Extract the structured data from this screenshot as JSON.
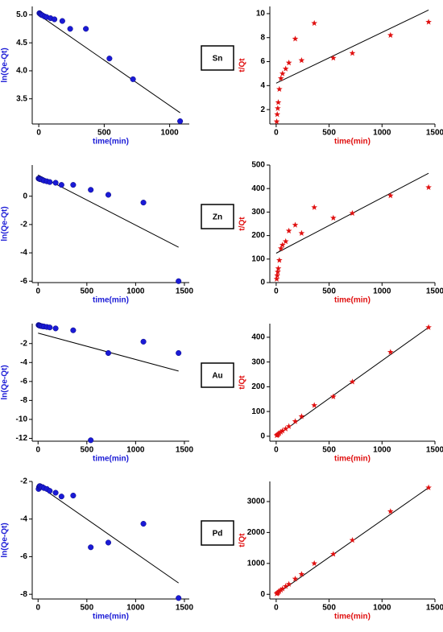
{
  "labels": [
    "Sn",
    "Zn",
    "Au",
    "Pd"
  ],
  "chart_data": [
    {
      "type": "scatter",
      "marker": "circle",
      "color": "#1a1ad6",
      "xlabel": "time(min)",
      "ylabel": "ln(Qe-Qt)",
      "x": [
        5,
        10,
        15,
        20,
        30,
        45,
        60,
        90,
        120,
        180,
        240,
        360,
        540,
        720,
        1080
      ],
      "values": [
        5.03,
        5.02,
        5.01,
        5.0,
        4.99,
        4.97,
        4.96,
        4.94,
        4.92,
        4.89,
        4.75,
        4.75,
        4.22,
        3.85,
        3.1
      ],
      "fit_x": [
        0,
        1080
      ],
      "fit_values": [
        5.0,
        3.25
      ],
      "xlim": [
        -50,
        1150
      ],
      "xticks": [
        0,
        500,
        1000
      ],
      "ylim": [
        3.05,
        5.15
      ],
      "yticks": [
        3.5,
        {
          "value": 4,
          "label": "4.0"
        },
        4.5,
        {
          "value": 5,
          "label": "5.0"
        }
      ]
    },
    {
      "type": "scatter",
      "marker": "star",
      "color": "#e01010",
      "xlabel": "time(min)",
      "ylabel": "t/Qt",
      "x": [
        5,
        10,
        15,
        20,
        30,
        45,
        60,
        90,
        120,
        180,
        240,
        360,
        540,
        720,
        1080,
        1440
      ],
      "values": [
        1.0,
        1.6,
        2.1,
        2.6,
        3.7,
        4.6,
        5.0,
        5.4,
        5.9,
        7.9,
        6.1,
        9.2,
        6.3,
        6.7,
        8.2,
        9.3
      ],
      "fit_x": [
        0,
        1440
      ],
      "fit_values": [
        4.2,
        10.3
      ],
      "xlim": [
        -60,
        1500
      ],
      "xticks": [
        0,
        500,
        1000,
        1500
      ],
      "ylim": [
        0.8,
        10.6
      ],
      "yticks": [
        2,
        4,
        6,
        8,
        10
      ]
    },
    {
      "type": "scatter",
      "marker": "circle",
      "color": "#1a1ad6",
      "xlabel": "time(min)",
      "ylabel": "ln(Qe-Qt)",
      "x": [
        5,
        10,
        15,
        20,
        30,
        45,
        60,
        90,
        120,
        180,
        240,
        360,
        540,
        720,
        1080,
        1440
      ],
      "values": [
        1.25,
        1.25,
        1.22,
        1.2,
        1.2,
        1.15,
        1.1,
        1.05,
        1.0,
        0.95,
        0.8,
        0.8,
        0.45,
        0.1,
        -0.45,
        -6.0
      ],
      "fit_x": [
        0,
        1440
      ],
      "fit_values": [
        1.5,
        -3.6
      ],
      "xlim": [
        -60,
        1550
      ],
      "xticks": [
        0,
        500,
        1000,
        1500
      ],
      "ylim": [
        -6.1,
        2.2
      ],
      "yticks": [
        -6,
        -4,
        -2,
        0
      ]
    },
    {
      "type": "scatter",
      "marker": "star",
      "color": "#e01010",
      "xlabel": "time(min)",
      "ylabel": "t/Qt",
      "x": [
        5,
        10,
        15,
        20,
        30,
        45,
        60,
        90,
        120,
        180,
        240,
        360,
        540,
        720,
        1080,
        1440
      ],
      "values": [
        15,
        30,
        45,
        60,
        95,
        145,
        160,
        175,
        220,
        245,
        210,
        320,
        275,
        295,
        370,
        405
      ],
      "fit_x": [
        0,
        1440
      ],
      "fit_values": [
        125,
        465
      ],
      "xlim": [
        -60,
        1500
      ],
      "xticks": [
        0,
        500,
        1000,
        1500
      ],
      "ylim": [
        0,
        500
      ],
      "yticks": [
        0,
        100,
        200,
        300,
        400,
        500
      ]
    },
    {
      "type": "scatter",
      "marker": "circle",
      "color": "#1a1ad6",
      "xlabel": "time(min)",
      "ylabel": "ln(Qe-Qt)",
      "x": [
        5,
        10,
        15,
        20,
        30,
        45,
        60,
        90,
        120,
        180,
        360,
        540,
        720,
        1080,
        1440
      ],
      "values": [
        -0.05,
        -0.08,
        -0.1,
        -0.12,
        -0.15,
        -0.18,
        -0.2,
        -0.25,
        -0.3,
        -0.4,
        -0.6,
        -12.2,
        -3.0,
        -1.8,
        -3.0
      ],
      "fit_x": [
        0,
        1440
      ],
      "fit_values": [
        -0.9,
        -4.9
      ],
      "xlim": [
        -60,
        1550
      ],
      "xticks": [
        0,
        500,
        1000,
        1500
      ],
      "ylim": [
        -12.3,
        0.1
      ],
      "yticks": [
        -12,
        -10,
        -8,
        -6,
        -4,
        -2
      ]
    },
    {
      "type": "scatter",
      "marker": "star",
      "color": "#e01010",
      "xlabel": "time(min)",
      "ylabel": "t/Qt",
      "x": [
        5,
        10,
        15,
        20,
        30,
        45,
        60,
        90,
        120,
        180,
        240,
        360,
        540,
        720,
        1080,
        1440
      ],
      "values": [
        3,
        5,
        7,
        9,
        12,
        17,
        22,
        30,
        40,
        60,
        80,
        125,
        160,
        220,
        340,
        440
      ],
      "fit_x": [
        0,
        1440
      ],
      "fit_values": [
        0,
        440
      ],
      "xlim": [
        -60,
        1500
      ],
      "xticks": [
        0,
        500,
        1000,
        1500
      ],
      "ylim": [
        -20,
        455
      ],
      "yticks": [
        0,
        100,
        200,
        300,
        400
      ]
    },
    {
      "type": "scatter",
      "marker": "circle",
      "color": "#1a1ad6",
      "xlabel": "time(min)",
      "ylabel": "ln(Qe-Qt)",
      "x": [
        5,
        10,
        15,
        20,
        30,
        45,
        60,
        90,
        120,
        180,
        240,
        360,
        540,
        720,
        1080,
        1440
      ],
      "values": [
        -2.4,
        -2.3,
        -2.25,
        -2.25,
        -2.3,
        -2.3,
        -2.35,
        -2.4,
        -2.5,
        -2.6,
        -2.8,
        -2.75,
        -5.5,
        -5.25,
        -4.25,
        -8.2
      ],
      "fit_x": [
        0,
        1440
      ],
      "fit_values": [
        -2.2,
        -7.4
      ],
      "xlim": [
        -60,
        1550
      ],
      "xticks": [
        0,
        500,
        1000,
        1500
      ],
      "ylim": [
        -8.25,
        -2.0
      ],
      "yticks": [
        -8,
        -6,
        -4,
        -2
      ]
    },
    {
      "type": "scatter",
      "marker": "star",
      "color": "#e01010",
      "xlabel": "time(min)",
      "ylabel": "t/Qt",
      "x": [
        5,
        10,
        15,
        20,
        30,
        45,
        60,
        90,
        120,
        180,
        240,
        360,
        540,
        720,
        1080,
        1440
      ],
      "values": [
        20,
        35,
        55,
        70,
        100,
        140,
        180,
        260,
        330,
        500,
        650,
        1000,
        1300,
        1750,
        2680,
        3450
      ],
      "fit_x": [
        0,
        1440
      ],
      "fit_values": [
        0,
        3450
      ],
      "xlim": [
        -60,
        1500
      ],
      "xticks": [
        0,
        500,
        1000,
        1500
      ],
      "ylim": [
        -150,
        3650
      ],
      "yticks": [
        0,
        1000,
        2000,
        3000
      ]
    }
  ]
}
